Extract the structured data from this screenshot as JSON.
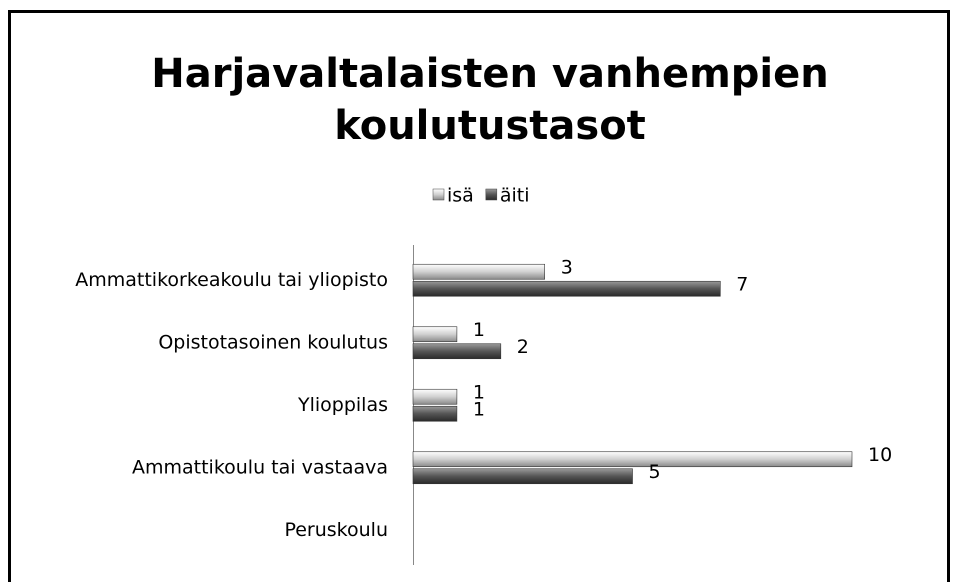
{
  "chart_data": {
    "type": "bar",
    "orientation": "horizontal",
    "title": [
      "Harjavaltalaisten vanhempien",
      "koulutustasot"
    ],
    "categories": [
      "Ammattikorkeakoulu tai yliopisto",
      "Opistotasoinen koulutus",
      "Ylioppilas",
      "Ammattikoulu tai vastaava",
      "Peruskoulu"
    ],
    "series": [
      {
        "name": "isä",
        "color": "#d0d0d0",
        "values": [
          3,
          1,
          1,
          10,
          null
        ]
      },
      {
        "name": "äiti",
        "color": "#555555",
        "values": [
          7,
          2,
          1,
          5,
          null
        ]
      }
    ],
    "legend": "top"
  }
}
